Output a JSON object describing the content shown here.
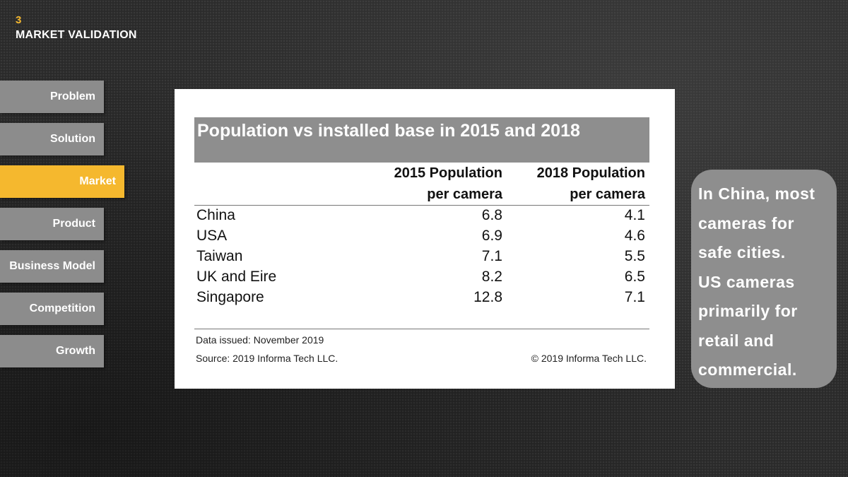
{
  "header": {
    "number": "3",
    "title": "MARKET VALIDATION"
  },
  "colors": {
    "accent": "#f5b82e",
    "nav_bg": "#8c8c8c",
    "title_bar": "#8e8e8e"
  },
  "nav": {
    "items": [
      {
        "label": "Problem",
        "active": false
      },
      {
        "label": "Solution",
        "active": false
      },
      {
        "label": "Market",
        "active": true
      },
      {
        "label": "Product",
        "active": false
      },
      {
        "label": "Business Model",
        "active": false
      },
      {
        "label": "Competition",
        "active": false
      },
      {
        "label": "Growth",
        "active": false
      }
    ]
  },
  "chart_data": {
    "type": "table",
    "title": "Population vs installed base in 2015 and 2018",
    "columns": [
      {
        "line1": "2015 Population",
        "line2": "per camera"
      },
      {
        "line1": "2018 Population",
        "line2": "per camera"
      }
    ],
    "rows": [
      {
        "country": "China",
        "v2015": "6.8",
        "v2018": "4.1"
      },
      {
        "country": "USA",
        "v2015": "6.9",
        "v2018": "4.6"
      },
      {
        "country": "Taiwan",
        "v2015": "7.1",
        "v2018": "5.5"
      },
      {
        "country": "UK and Eire",
        "v2015": "8.2",
        "v2018": "6.5"
      },
      {
        "country": "Singapore",
        "v2015": "12.8",
        "v2018": "7.1"
      }
    ],
    "footer": {
      "issued": "Data issued: November 2019",
      "source": "Source: 2019 Informa Tech LLC.",
      "copyright": "© 2019 Informa Tech LLC."
    }
  },
  "callout": {
    "lines": [
      "In China, most",
      "cameras for",
      "safe cities.",
      "US cameras",
      "primarily for",
      "retail and",
      "commercial."
    ]
  }
}
